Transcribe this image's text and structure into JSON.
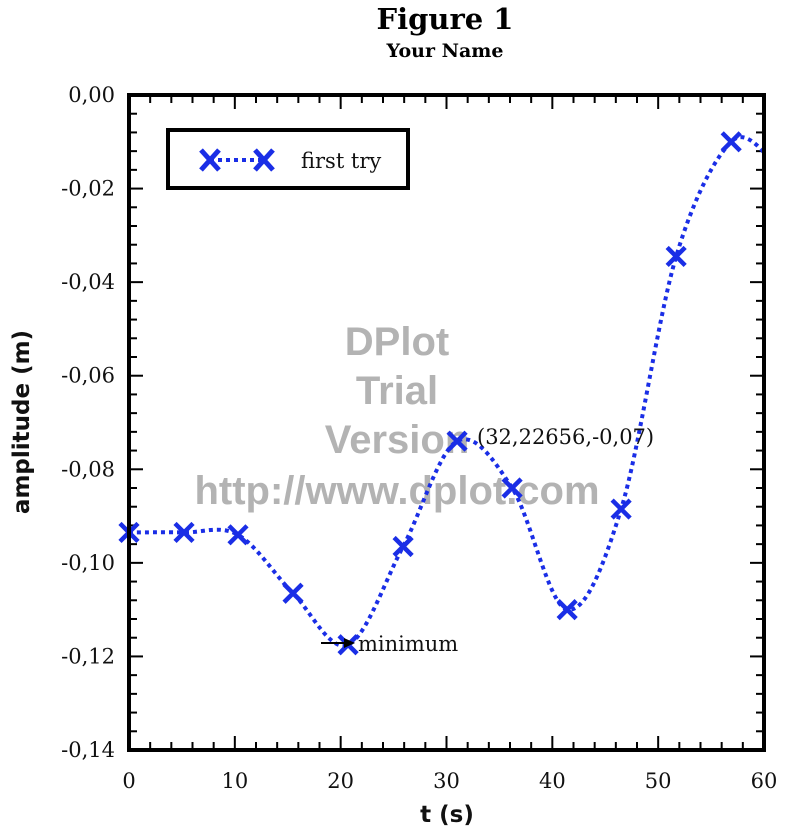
{
  "chart_data": {
    "type": "line",
    "title": "Figure 1",
    "subtitle": "Your Name",
    "xlabel": "t (s)",
    "ylabel": "amplitude (m)",
    "xlim": [
      0,
      60
    ],
    "ylim": [
      -0.14,
      0.0
    ],
    "x_ticks": [
      0,
      10,
      20,
      30,
      40,
      50,
      60
    ],
    "x_tick_labels": [
      "0",
      "10",
      "20",
      "30",
      "40",
      "50",
      "60"
    ],
    "y_ticks": [
      0.0,
      -0.02,
      -0.04,
      -0.06,
      -0.08,
      -0.1,
      -0.12,
      -0.14
    ],
    "y_tick_labels": [
      "0,00",
      "-0,02",
      "-0,04",
      "-0,06",
      "-0,08",
      "-0,10",
      "-0,12",
      "-0,14"
    ],
    "grid": false,
    "legend_position": "top-left",
    "series": [
      {
        "name": "first try",
        "color": "#1a2ee6",
        "line_style": "dotted",
        "marker": "x",
        "x": [
          0,
          5.2,
          10.3,
          15.5,
          20.7,
          25.9,
          31.0,
          36.2,
          41.4,
          46.5,
          51.7,
          56.9
        ],
        "y": [
          -0.0935,
          -0.0935,
          -0.094,
          -0.1065,
          -0.1175,
          -0.0965,
          -0.074,
          -0.084,
          -0.11,
          -0.0885,
          -0.0345,
          -0.01
        ]
      }
    ],
    "annotations": [
      {
        "text": "(32,22656,-0,07)"
      },
      {
        "text": "minimum"
      }
    ],
    "watermark": [
      "DPlot",
      "Trial",
      "Version",
      "http://www.dplot.com"
    ]
  }
}
